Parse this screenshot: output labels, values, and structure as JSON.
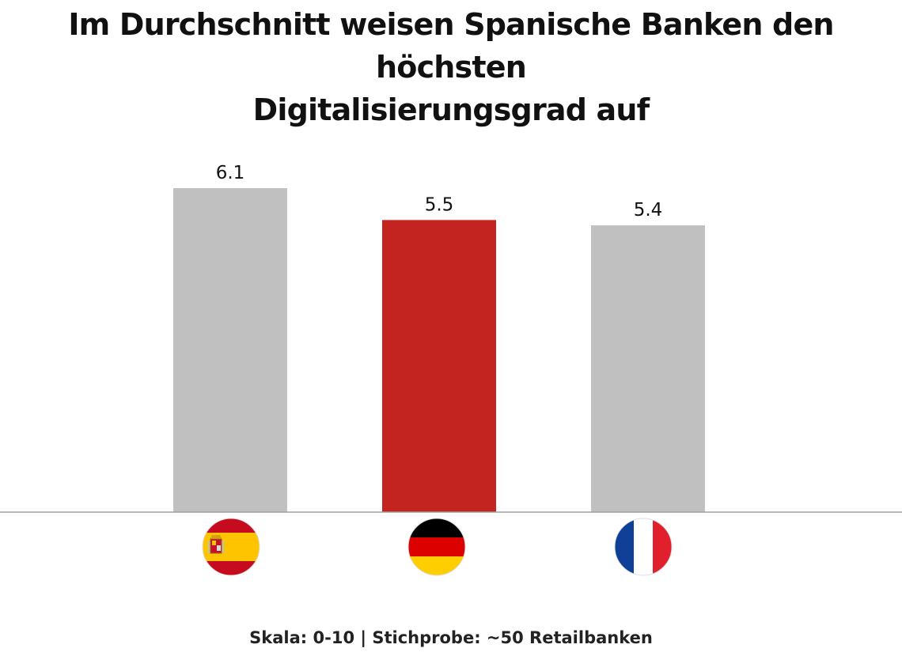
{
  "title_lines": [
    "Im Durchschnitt weisen Spanische Banken den höchsten",
    "Digitalisierungsgrad auf"
  ],
  "footnote": "Skala: 0-10 | Stichprobe: ~50 Retailbanken",
  "chart_data": {
    "type": "bar",
    "title": "Im Durchschnitt weisen Spanische Banken den höchsten Digitalisierungsgrad auf",
    "categories": [
      "Spanien",
      "Deutschland",
      "Frankreich"
    ],
    "category_icons": [
      "spain-flag-icon",
      "germany-flag-icon",
      "france-flag-icon"
    ],
    "values": [
      6.1,
      5.5,
      5.4
    ],
    "value_labels": [
      "6.1",
      "5.5",
      "5.4"
    ],
    "bar_colors": [
      "#c0c0c0",
      "#c32420",
      "#c0c0c0"
    ],
    "ylim": [
      0,
      10
    ],
    "grid": false,
    "xlabel": "",
    "ylabel": ""
  },
  "colors": {
    "highlight": "#c32420",
    "neutral": "#c0c0c0",
    "axis": "#a0a0a0"
  }
}
